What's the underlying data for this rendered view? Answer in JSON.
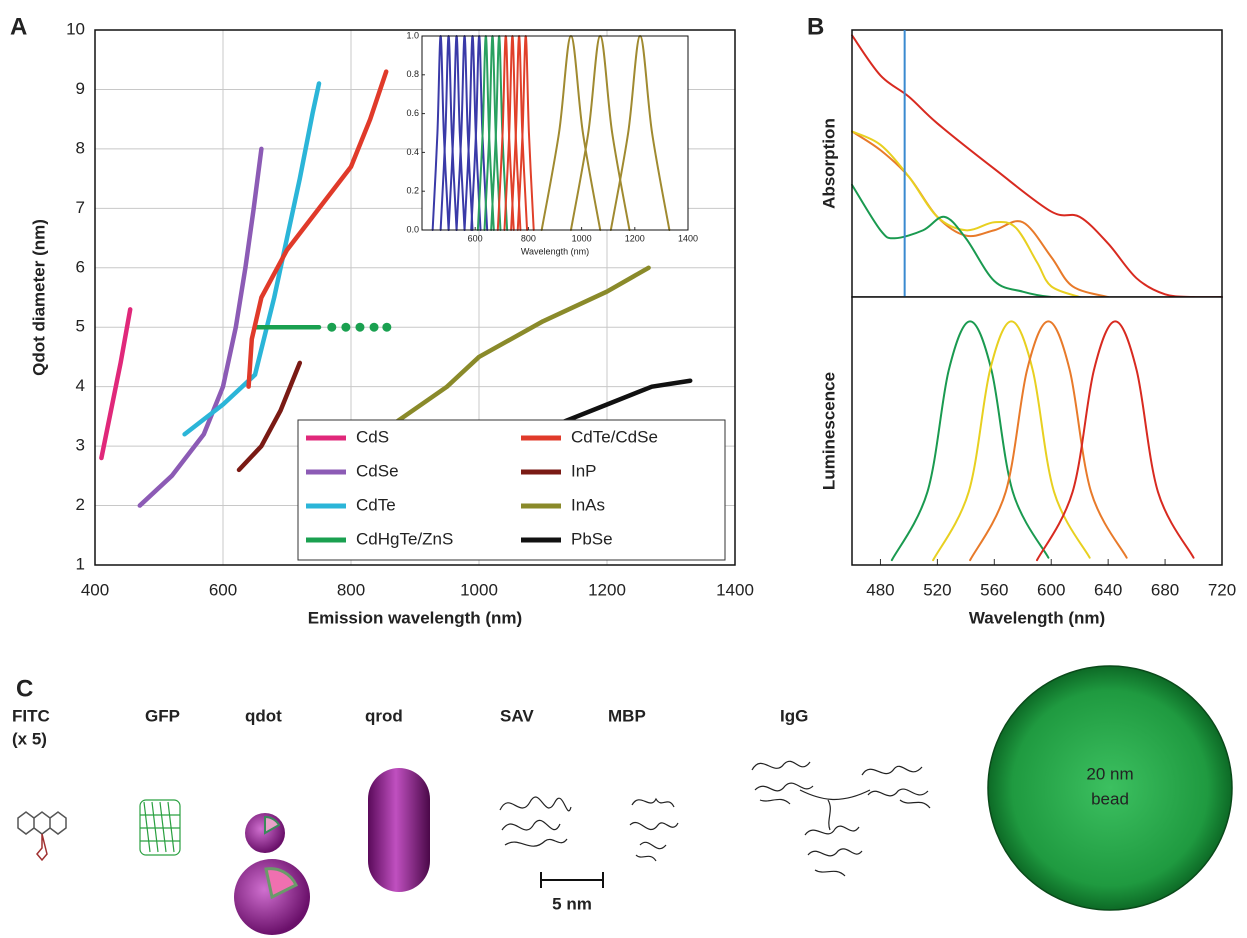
{
  "chart_data": [
    {
      "type": "line",
      "panel_label": "A",
      "x_label": "Emission wavelength (nm)",
      "y_label": "Qdot diameter (nm)",
      "xlim": [
        400,
        1400
      ],
      "xticks": [
        400,
        600,
        800,
        1000,
        1200,
        1400
      ],
      "ylim": [
        1,
        10
      ],
      "yticks": [
        1,
        2,
        3,
        4,
        5,
        6,
        7,
        8,
        9,
        10
      ],
      "grid": true,
      "legend": "lower right",
      "series": [
        {
          "name": "CdS",
          "color": "#e0287a",
          "x": [
            410,
            425,
            440,
            455
          ],
          "values": [
            2.8,
            3.6,
            4.4,
            5.3
          ]
        },
        {
          "name": "CdSe",
          "color": "#8c5bb5",
          "x": [
            470,
            520,
            570,
            600,
            620,
            635,
            648,
            660
          ],
          "values": [
            2.0,
            2.5,
            3.2,
            4.0,
            5.0,
            6.0,
            7.0,
            8.0
          ]
        },
        {
          "name": "CdTe",
          "color": "#2bb5d8",
          "x": [
            540,
            600,
            650,
            680,
            700,
            720,
            740,
            750
          ],
          "values": [
            3.2,
            3.7,
            4.2,
            5.5,
            6.5,
            7.5,
            8.6,
            9.1
          ]
        },
        {
          "name": "CdHgTe/ZnS",
          "color": "#1aa050",
          "x": [
            650,
            700,
            750
          ],
          "values": [
            5,
            5,
            5
          ],
          "dots": {
            "x": [
              770,
              792,
              814,
              836,
              856
            ],
            "values": [
              5,
              5,
              5,
              5,
              5
            ]
          }
        },
        {
          "name": "CdTe/CdSe",
          "color": "#e03a2a",
          "x": [
            640,
            645,
            660,
            700,
            750,
            800,
            830,
            855
          ],
          "values": [
            4.0,
            4.8,
            5.5,
            6.3,
            7.0,
            7.7,
            8.5,
            9.3
          ]
        },
        {
          "name": "InP",
          "color": "#7a1a14",
          "x": [
            625,
            660,
            690,
            720
          ],
          "values": [
            2.6,
            3.0,
            3.6,
            4.4
          ]
        },
        {
          "name": "InAs",
          "color": "#8a8a2a",
          "x": [
            870,
            950,
            1000,
            1100,
            1200,
            1265
          ],
          "values": [
            3.4,
            4.0,
            4.5,
            5.1,
            5.6,
            6.0
          ]
        },
        {
          "name": "PbSe",
          "color": "#111111",
          "x": [
            1130,
            1200,
            1270,
            1330
          ],
          "values": [
            3.4,
            3.7,
            4.0,
            4.1
          ]
        }
      ]
    },
    {
      "type": "line",
      "x_label": "Wavelength (nm)",
      "xlim": [
        400,
        1400
      ],
      "xticks": [
        600,
        800,
        1000,
        1200,
        1400
      ],
      "ylim": [
        0,
        1
      ],
      "yticks": [
        {
          "value": 0,
          "label": "0.0"
        },
        0.2,
        0.4,
        0.6,
        0.8,
        {
          "value": 1,
          "label": "1.0"
        }
      ],
      "series": [
        {
          "color": "#3a3aa8",
          "x": [
            440,
            458,
            470,
            482,
            500
          ],
          "values": [
            0,
            0.5,
            1,
            0.5,
            0
          ]
        },
        {
          "color": "#3a3aa8",
          "x": [
            470,
            488,
            500,
            512,
            530
          ],
          "values": [
            0,
            0.5,
            1,
            0.5,
            0
          ]
        },
        {
          "color": "#3a3aa8",
          "x": [
            500,
            518,
            530,
            542,
            560
          ],
          "values": [
            0,
            0.5,
            1,
            0.5,
            0
          ]
        },
        {
          "color": "#3a3aa8",
          "x": [
            530,
            548,
            560,
            572,
            590
          ],
          "values": [
            0,
            0.5,
            1,
            0.5,
            0
          ]
        },
        {
          "color": "#3a3aa8",
          "x": [
            560,
            578,
            590,
            602,
            620
          ],
          "values": [
            0,
            0.5,
            1,
            0.5,
            0
          ]
        },
        {
          "color": "#3a3aa8",
          "x": [
            585,
            603,
            615,
            627,
            645
          ],
          "values": [
            0,
            0.5,
            1,
            0.5,
            0
          ]
        },
        {
          "color": "#2aa060",
          "x": [
            610,
            628,
            640,
            652,
            670
          ],
          "values": [
            0,
            0.5,
            1,
            0.5,
            0
          ]
        },
        {
          "color": "#2aa060",
          "x": [
            635,
            653,
            665,
            677,
            695
          ],
          "values": [
            0,
            0.5,
            1,
            0.5,
            0
          ]
        },
        {
          "color": "#2aa060",
          "x": [
            660,
            678,
            690,
            702,
            720
          ],
          "values": [
            0,
            0.5,
            1,
            0.5,
            0
          ]
        },
        {
          "color": "#e0402a",
          "x": [
            685,
            703,
            715,
            727,
            745
          ],
          "values": [
            0,
            0.5,
            1,
            0.5,
            0
          ]
        },
        {
          "color": "#e0402a",
          "x": [
            710,
            728,
            740,
            752,
            770
          ],
          "values": [
            0,
            0.5,
            1,
            0.5,
            0
          ]
        },
        {
          "color": "#e0402a",
          "x": [
            735,
            753,
            765,
            777,
            795
          ],
          "values": [
            0,
            0.5,
            1,
            0.5,
            0
          ]
        },
        {
          "color": "#e0402a",
          "x": [
            760,
            778,
            790,
            802,
            820
          ],
          "values": [
            0,
            0.5,
            1,
            0.5,
            0
          ]
        },
        {
          "color": "#a08a30",
          "x": [
            850,
            915,
            960,
            1005,
            1070
          ],
          "values": [
            0,
            0.5,
            1,
            0.5,
            0
          ]
        },
        {
          "color": "#a08a30",
          "x": [
            960,
            1025,
            1070,
            1115,
            1180
          ],
          "values": [
            0,
            0.5,
            1,
            0.5,
            0
          ]
        },
        {
          "color": "#a08a30",
          "x": [
            1110,
            1175,
            1220,
            1265,
            1330
          ],
          "values": [
            0,
            0.5,
            1,
            0.5,
            0
          ]
        }
      ]
    },
    {
      "type": "line",
      "panel_label": "B",
      "y_label": "Absorption",
      "xlim": [
        460,
        720
      ],
      "ylim": [
        0,
        1
      ],
      "marker_x": 497,
      "series": [
        {
          "color": "#d82a20",
          "x": [
            460,
            480,
            500,
            520,
            560,
            600,
            620,
            640,
            660,
            680,
            700,
            720
          ],
          "values": [
            0.98,
            0.83,
            0.75,
            0.65,
            0.48,
            0.32,
            0.3,
            0.2,
            0.07,
            0.01,
            0,
            0
          ]
        },
        {
          "color": "#e87a2a",
          "x": [
            460,
            480,
            500,
            520,
            540,
            560,
            580,
            600,
            615,
            640
          ],
          "values": [
            0.62,
            0.55,
            0.45,
            0.3,
            0.23,
            0.25,
            0.28,
            0.15,
            0.04,
            0
          ]
        },
        {
          "color": "#e8d020",
          "x": [
            460,
            480,
            500,
            520,
            540,
            560,
            575,
            590,
            600,
            620
          ],
          "values": [
            0.62,
            0.57,
            0.45,
            0.3,
            0.25,
            0.28,
            0.26,
            0.13,
            0.04,
            0
          ]
        },
        {
          "color": "#1a9a50",
          "x": [
            460,
            480,
            490,
            510,
            525,
            540,
            560,
            580,
            600,
            620
          ],
          "values": [
            0.42,
            0.25,
            0.22,
            0.25,
            0.3,
            0.22,
            0.06,
            0.02,
            0,
            0
          ]
        }
      ]
    },
    {
      "type": "line",
      "y_label": "Luminescence",
      "x_label": "Wavelength (nm)",
      "xlim": [
        460,
        720
      ],
      "xticks": [
        480,
        520,
        560,
        600,
        640,
        680,
        720
      ],
      "ylim": [
        0,
        1.1
      ],
      "series": [
        {
          "color": "#1a9a50",
          "x": [
            488,
            513,
            528,
            543,
            558,
            573,
            598
          ],
          "values": [
            0.02,
            0.3,
            0.8,
            1,
            0.8,
            0.3,
            0.03
          ]
        },
        {
          "color": "#e8d020",
          "x": [
            517,
            542,
            557,
            572,
            587,
            602,
            627
          ],
          "values": [
            0.02,
            0.3,
            0.8,
            1,
            0.8,
            0.3,
            0.03
          ]
        },
        {
          "color": "#e87a2a",
          "x": [
            543,
            568,
            583,
            598,
            613,
            628,
            653
          ],
          "values": [
            0.02,
            0.3,
            0.8,
            1,
            0.8,
            0.3,
            0.03
          ]
        },
        {
          "color": "#d82a20",
          "x": [
            590,
            615,
            630,
            645,
            660,
            675,
            700
          ],
          "values": [
            0.02,
            0.3,
            0.8,
            1,
            0.8,
            0.3,
            0.03
          ]
        }
      ]
    }
  ],
  "panel_c": {
    "label": "C",
    "items": [
      "FITC",
      "(x 5)",
      "GFP",
      "qdot",
      "qrod",
      "SAV",
      "MBP",
      "IgG"
    ],
    "bead": [
      "20 nm",
      "bead"
    ],
    "scale_bar": "5 nm"
  }
}
